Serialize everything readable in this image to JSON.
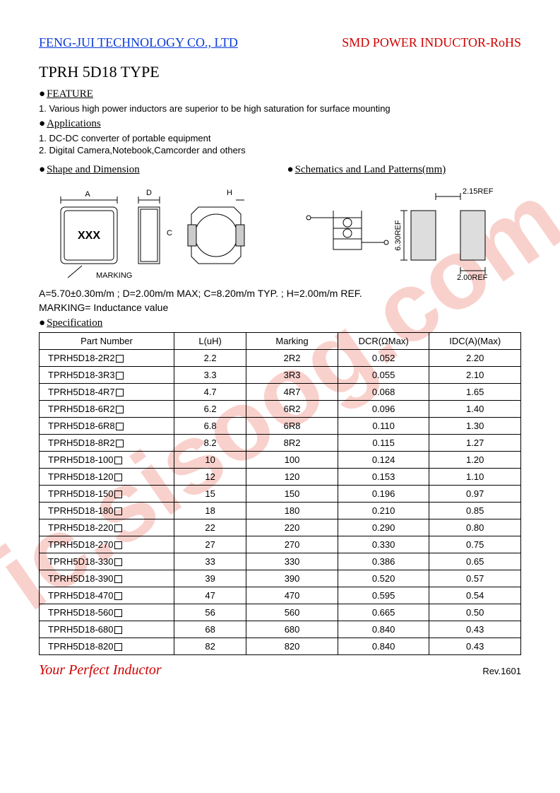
{
  "header": {
    "company": "FENG-JUI TECHNOLOGY CO., LTD",
    "product_type": "SMD POWER INDUCTOR-RoHS"
  },
  "title": "TPRH 5D18 TYPE",
  "sections": {
    "feature": {
      "heading": "FEATURE",
      "items": [
        "1.    Various high power inductors are superior to be high saturation for surface mounting"
      ]
    },
    "applications": {
      "heading": "Applications",
      "items": [
        "1.    DC-DC converter of portable equipment",
        "2.    Digital Camera,Notebook,Camcorder and others"
      ]
    },
    "shape": {
      "heading": "Shape and Dimension"
    },
    "schematics": {
      "heading": "Schematics and Land Patterns(mm)"
    },
    "specification": {
      "heading": "Specification"
    }
  },
  "shape_diagram": {
    "marking_text": "XXX",
    "marking_label": "MARKING",
    "dim_labels": {
      "A": "A",
      "D": "D",
      "H": "H",
      "C": "C"
    }
  },
  "schematic_diagram": {
    "dim_215": "2.15REF",
    "dim_630": "6.30REF",
    "dim_200": "2.00REF"
  },
  "dimensions_text": "A=5.70±0.30m/m ; D=2.00m/m MAX; C=8.20m/m TYP. ; H=2.00m/m REF.",
  "marking_text": "MARKING= Inductance value",
  "spec_table": {
    "columns": [
      "Part Number",
      "L(uH)",
      "Marking",
      "DCR(ΩMax)",
      "IDC(A)(Max)"
    ],
    "rows": [
      [
        "TPRH5D18-2R2",
        "2.2",
        "2R2",
        "0.052",
        "2.20"
      ],
      [
        "TPRH5D18-3R3",
        "3.3",
        "3R3",
        "0.055",
        "2.10"
      ],
      [
        "TPRH5D18-4R7",
        "4.7",
        "4R7",
        "0.068",
        "1.65"
      ],
      [
        "TPRH5D18-6R2",
        "6.2",
        "6R2",
        "0.096",
        "1.40"
      ],
      [
        "TPRH5D18-6R8",
        "6.8",
        "6R8",
        "0.110",
        "1.30"
      ],
      [
        "TPRH5D18-8R2",
        "8.2",
        "8R2",
        "0.115",
        "1.27"
      ],
      [
        "TPRH5D18-100",
        "10",
        "100",
        "0.124",
        "1.20"
      ],
      [
        "TPRH5D18-120",
        "12",
        "120",
        "0.153",
        "1.10"
      ],
      [
        "TPRH5D18-150",
        "15",
        "150",
        "0.196",
        "0.97"
      ],
      [
        "TPRH5D18-180",
        "18",
        "180",
        "0.210",
        "0.85"
      ],
      [
        "TPRH5D18-220",
        "22",
        "220",
        "0.290",
        "0.80"
      ],
      [
        "TPRH5D18-270",
        "27",
        "270",
        "0.330",
        "0.75"
      ],
      [
        "TPRH5D18-330",
        "33",
        "330",
        "0.386",
        "0.65"
      ],
      [
        "TPRH5D18-390",
        "39",
        "390",
        "0.520",
        "0.57"
      ],
      [
        "TPRH5D18-470",
        "47",
        "470",
        "0.595",
        "0.54"
      ],
      [
        "TPRH5D18-560",
        "56",
        "560",
        "0.665",
        "0.50"
      ],
      [
        "TPRH5D18-680",
        "68",
        "680",
        "0.840",
        "0.43"
      ],
      [
        "TPRH5D18-820",
        "82",
        "820",
        "0.840",
        "0.43"
      ]
    ],
    "col_widths": [
      "28%",
      "15%",
      "19%",
      "19%",
      "19%"
    ]
  },
  "footer": {
    "tagline": "Your Perfect Inductor",
    "rev": "Rev.1601"
  },
  "watermark": "ic.sisoog.com",
  "colors": {
    "link_blue": "#0b3bd8",
    "brand_red": "#d00000",
    "watermark_red": "rgba(230,70,50,0.25)",
    "border": "#000000"
  }
}
